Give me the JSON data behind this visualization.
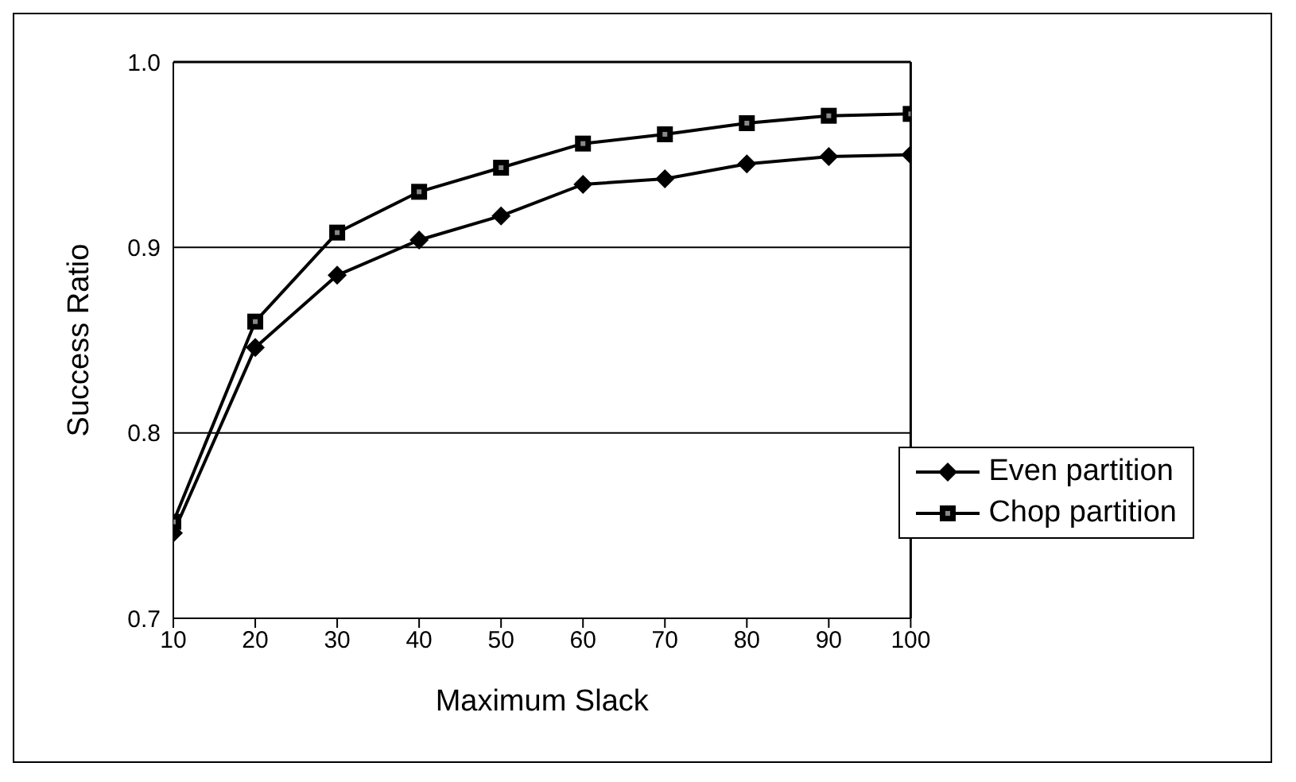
{
  "chart_data": {
    "type": "line",
    "xlabel": "Maximum Slack",
    "ylabel": "Success Ratio",
    "x": [
      10,
      20,
      30,
      40,
      50,
      60,
      70,
      80,
      90,
      100
    ],
    "xlim": [
      10,
      100
    ],
    "xticks": [
      10,
      20,
      30,
      40,
      50,
      60,
      70,
      80,
      90,
      100
    ],
    "ylim": [
      0.7,
      1.0
    ],
    "yticks": [
      0.7,
      {
        "value": 0.8,
        "label": "0.8"
      },
      0.9,
      {
        "value": 1.0,
        "label": "1.0"
      }
    ],
    "grid": "y",
    "legend": "bottom right",
    "line_style": "solid",
    "series": [
      {
        "name": "Even partition",
        "color": "#000000",
        "marker": "diamond",
        "values": [
          0.746,
          0.846,
          0.885,
          0.904,
          0.917,
          0.934,
          0.937,
          0.945,
          0.949,
          0.95
        ]
      },
      {
        "name": "Chop partition",
        "color": "#000000",
        "marker": "square",
        "values": [
          0.752,
          0.86,
          0.908,
          0.93,
          0.943,
          0.956,
          0.961,
          0.967,
          0.971,
          0.972
        ]
      }
    ]
  }
}
